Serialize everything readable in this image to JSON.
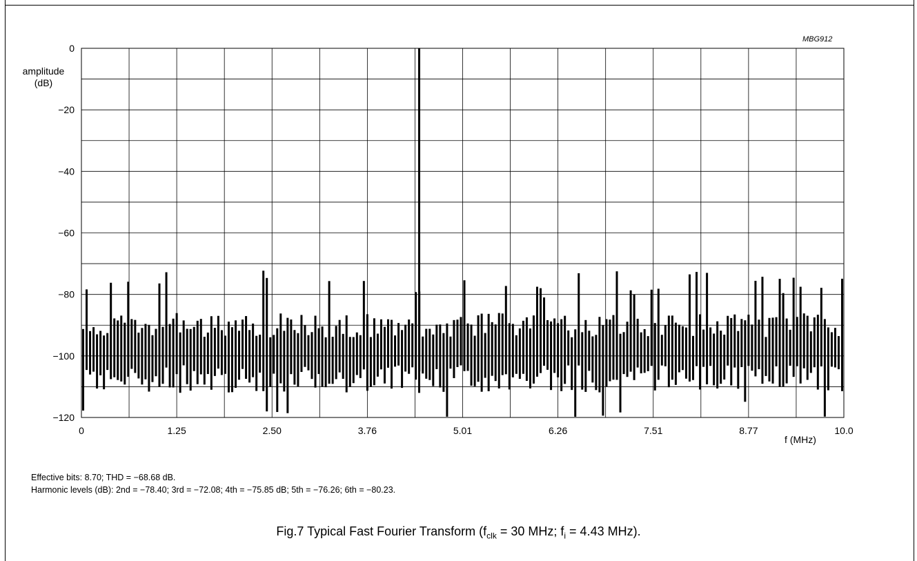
{
  "figure_code": "MBG912",
  "notes": {
    "line1": "Effective bits: 8.70; THD = −68.68 dB.",
    "line2": "Harmonic levels (dB): 2nd = −78.40; 3rd = −72.08; 4th = −75.85 dB; 5th = −76.26; 6th = −80.23."
  },
  "caption": {
    "prefix": "Fig.7  Typical Fast Fourier Transform (f",
    "clk_sub": "clk",
    "middle": " = 30 MHz; f",
    "i_sub": "i",
    "suffix": " = 4.43 MHz)."
  },
  "chart_data": {
    "type": "bar",
    "title": "",
    "ylabel": "amplitude\n(dB)",
    "xlabel": "f  (MHz)",
    "ylim": [
      -120,
      0
    ],
    "xlim": [
      0,
      10.0
    ],
    "y_ticks": [
      "0",
      "−20",
      "−40",
      "−60",
      "−80",
      "−100",
      "−120"
    ],
    "x_ticks": [
      "0",
      "1.25",
      "2.50",
      "3.76",
      "5.01",
      "6.26",
      "7.51",
      "8.77",
      "10.0"
    ],
    "grid": true,
    "fundamental": {
      "x": 4.43,
      "y": 0
    },
    "noise_floor_approx": [
      -112,
      -86
    ],
    "colors": {
      "bars": "#000000",
      "grid": "#000000"
    }
  }
}
